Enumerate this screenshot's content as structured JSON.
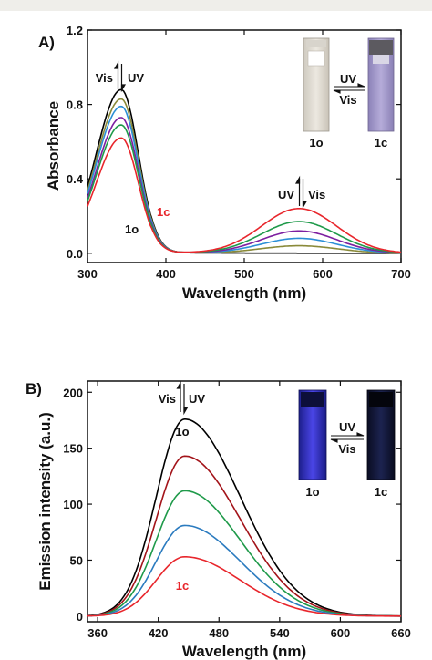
{
  "chart_data": [
    {
      "panel": "A)",
      "type": "line",
      "xlabel": "Wavelength (nm)",
      "ylabel": "Absorbance",
      "xlim": [
        300,
        700
      ],
      "ylim": [
        -0.05,
        1.2
      ],
      "xticks": [
        300,
        400,
        500,
        600,
        700
      ],
      "yticks": [
        0.0,
        0.4,
        0.8,
        1.2
      ],
      "ytick_labels": [
        "0.0",
        "0.4",
        "0.8",
        "1.2"
      ],
      "grid": false,
      "annotations": {
        "left_arrow_left": "Vis",
        "left_arrow_right": "UV",
        "right_arrow_left": "UV",
        "right_arrow_right": "Vis",
        "open_label": "1o",
        "closed_label": "1c",
        "inset_top": "UV",
        "inset_bottom": "Vis",
        "inset_left_caption": "1o",
        "inset_right_caption": "1c"
      },
      "series": [
        {
          "color": "#000000",
          "peak1": 0.88,
          "peak2": 0.0
        },
        {
          "color": "#8a8a3a",
          "peak1": 0.83,
          "peak2": 0.04
        },
        {
          "color": "#2b8fd6",
          "peak1": 0.79,
          "peak2": 0.08
        },
        {
          "color": "#7d1fa0",
          "peak1": 0.73,
          "peak2": 0.12
        },
        {
          "color": "#1f9a4a",
          "peak1": 0.69,
          "peak2": 0.17
        },
        {
          "color": "#e8262c",
          "peak1": 0.62,
          "peak2": 0.24
        }
      ]
    },
    {
      "panel": "B)",
      "type": "line",
      "xlabel": "Wavelength (nm)",
      "ylabel": "Emission intensity (a.u.)",
      "xlim": [
        350,
        660
      ],
      "ylim": [
        -5,
        210
      ],
      "xticks": [
        360,
        420,
        480,
        540,
        600,
        660
      ],
      "yticks": [
        0,
        50,
        100,
        150,
        200
      ],
      "grid": false,
      "annotations": {
        "arrow_left": "Vis",
        "arrow_right": "UV",
        "open_label": "1o",
        "closed_label": "1c",
        "inset_top": "UV",
        "inset_bottom": "Vis",
        "inset_left_caption": "1o",
        "inset_right_caption": "1c"
      },
      "series": [
        {
          "color": "#000000",
          "peak": 176
        },
        {
          "color": "#a3141a",
          "peak": 143
        },
        {
          "color": "#1f9a4a",
          "peak": 112
        },
        {
          "color": "#2b7bbf",
          "peak": 81
        },
        {
          "color": "#e8262c",
          "peak": 53
        }
      ]
    }
  ]
}
